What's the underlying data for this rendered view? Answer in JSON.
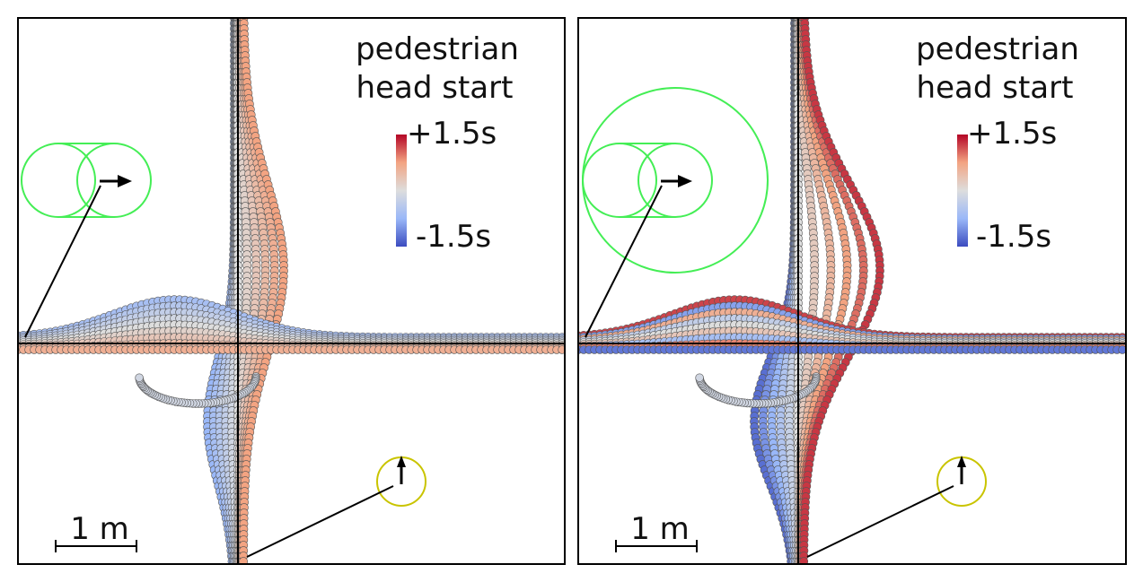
{
  "panels": [
    {
      "title_line1": "pedestrian",
      "title_line2": "head start",
      "colorbar_max_label": "+1.5s",
      "colorbar_min_label": "-1.5s",
      "scale_label": "1 m",
      "car_safety_circle": false
    },
    {
      "title_line1": "pedestrian",
      "title_line2": "head start",
      "colorbar_max_label": "+1.5s",
      "colorbar_min_label": "-1.5s",
      "scale_label": "1 m",
      "car_safety_circle": true
    }
  ],
  "colors": {
    "car_marker": "#44ee55",
    "pedestrian_marker": "#c9c400",
    "colormap_low": "#3b4cc0",
    "colormap_mid": "#dddddd",
    "colormap_high": "#b40426",
    "axis_line": "#000000"
  }
}
